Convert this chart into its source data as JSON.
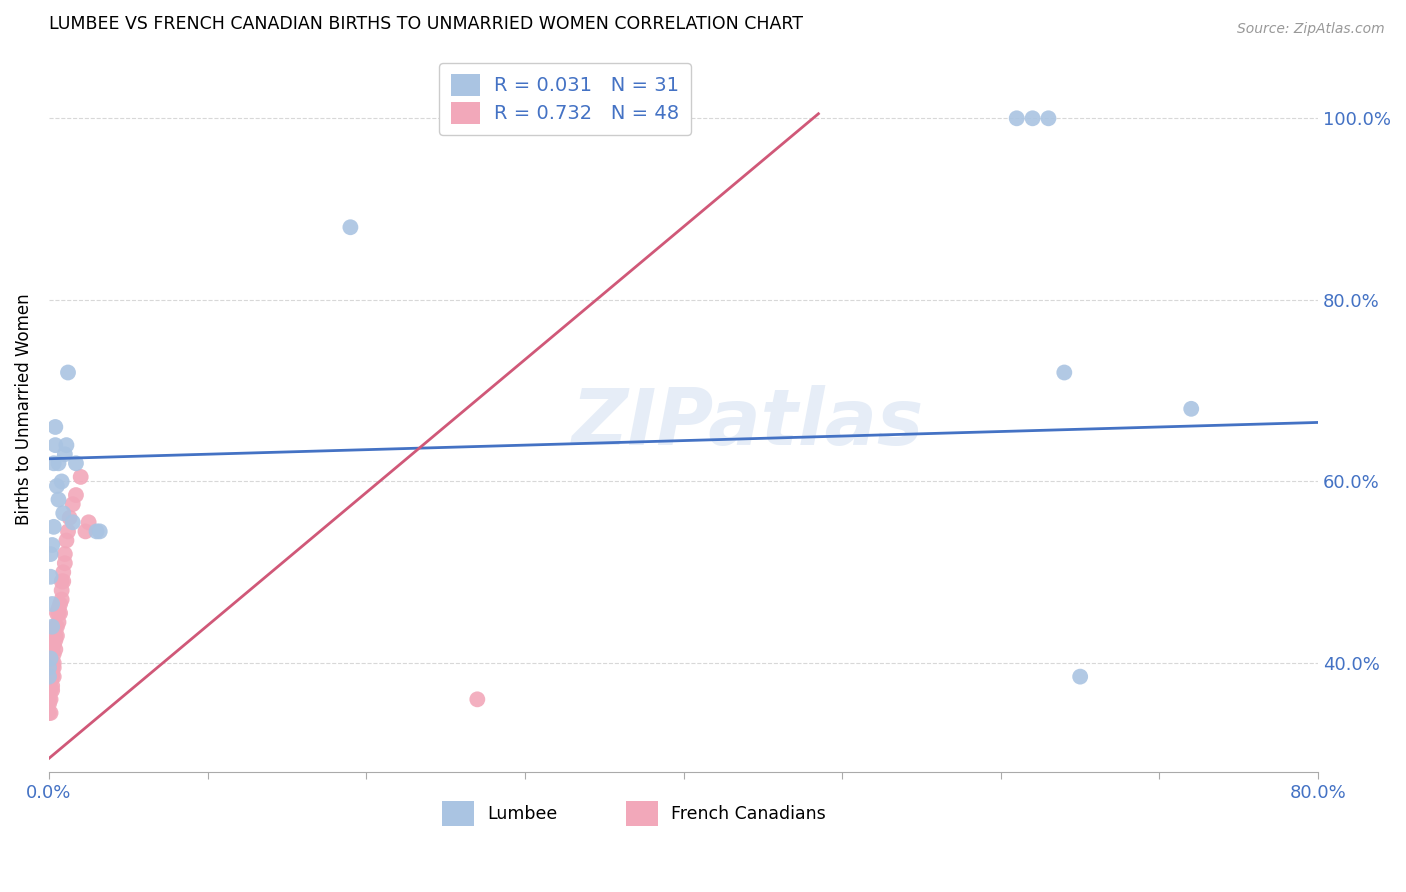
{
  "title": "LUMBEE VS FRENCH CANADIAN BIRTHS TO UNMARRIED WOMEN CORRELATION CHART",
  "source": "Source: ZipAtlas.com",
  "ylabel": "Births to Unmarried Women",
  "ytick_labels": [
    "40.0%",
    "60.0%",
    "80.0%",
    "100.0%"
  ],
  "ytick_values": [
    0.4,
    0.6,
    0.8,
    1.0
  ],
  "legend_lumbee": "Lumbee",
  "legend_fc": "French Canadians",
  "R_lumbee": 0.031,
  "N_lumbee": 31,
  "R_fc": 0.732,
  "N_fc": 48,
  "lumbee_color": "#aac4e2",
  "fc_color": "#f2a8ba",
  "lumbee_line_color": "#4472c4",
  "fc_line_color": "#d05878",
  "watermark": "ZIPatlas",
  "xmin": 0.0,
  "xmax": 0.8,
  "ymin": 0.28,
  "ymax": 1.08,
  "lumbee_x": [
    0.0,
    0.0,
    0.001,
    0.001,
    0.001,
    0.002,
    0.002,
    0.002,
    0.003,
    0.003,
    0.004,
    0.004,
    0.005,
    0.006,
    0.006,
    0.008,
    0.009,
    0.01,
    0.011,
    0.012,
    0.015,
    0.017,
    0.03,
    0.032,
    0.19,
    0.61,
    0.62,
    0.63,
    0.64,
    0.65,
    0.72
  ],
  "lumbee_y": [
    0.395,
    0.385,
    0.405,
    0.495,
    0.52,
    0.44,
    0.465,
    0.53,
    0.55,
    0.62,
    0.64,
    0.66,
    0.595,
    0.58,
    0.62,
    0.6,
    0.565,
    0.63,
    0.64,
    0.72,
    0.555,
    0.62,
    0.545,
    0.545,
    0.88,
    1.0,
    1.0,
    1.0,
    0.72,
    0.385,
    0.68
  ],
  "fc_x": [
    0.0,
    0.0,
    0.0,
    0.0,
    0.001,
    0.001,
    0.001,
    0.001,
    0.001,
    0.002,
    0.002,
    0.002,
    0.002,
    0.002,
    0.002,
    0.003,
    0.003,
    0.003,
    0.003,
    0.003,
    0.004,
    0.004,
    0.004,
    0.004,
    0.005,
    0.005,
    0.005,
    0.006,
    0.006,
    0.006,
    0.007,
    0.007,
    0.008,
    0.008,
    0.008,
    0.009,
    0.009,
    0.01,
    0.01,
    0.011,
    0.012,
    0.013,
    0.015,
    0.017,
    0.02,
    0.023,
    0.025,
    0.27
  ],
  "fc_y": [
    0.345,
    0.355,
    0.36,
    0.37,
    0.345,
    0.36,
    0.37,
    0.38,
    0.39,
    0.37,
    0.375,
    0.385,
    0.39,
    0.395,
    0.4,
    0.385,
    0.395,
    0.4,
    0.41,
    0.42,
    0.415,
    0.425,
    0.43,
    0.44,
    0.43,
    0.44,
    0.455,
    0.445,
    0.455,
    0.46,
    0.455,
    0.465,
    0.47,
    0.48,
    0.49,
    0.49,
    0.5,
    0.51,
    0.52,
    0.535,
    0.545,
    0.56,
    0.575,
    0.585,
    0.605,
    0.545,
    0.555,
    0.36
  ],
  "lumbee_trend": [
    0.0,
    0.8
  ],
  "lumbee_trend_y": [
    0.625,
    0.665
  ],
  "fc_trend_x": [
    0.0,
    0.485
  ],
  "fc_trend_y": [
    0.295,
    1.005
  ]
}
